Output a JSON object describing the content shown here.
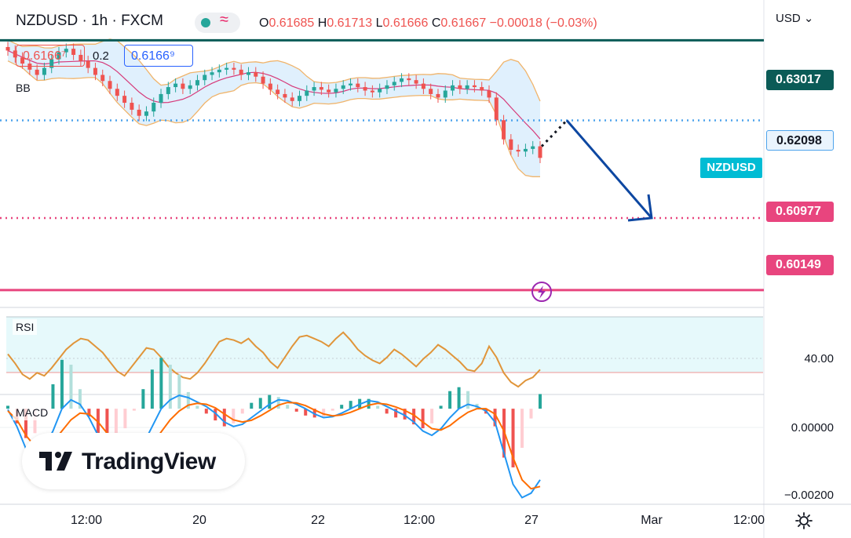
{
  "header": {
    "symbol": "NZDUSD · 1h · FXCM",
    "o_label": "O",
    "o_value": "0.61685",
    "h_label": "H",
    "h_value": "0.61713",
    "l_label": "L",
    "l_value": "0.61666",
    "c_label": "C",
    "c_value": "0.61667",
    "change": "−0.00018 (−0.03%)"
  },
  "trade": {
    "sell": "0.6166⁷",
    "spread": "0.2",
    "buy": "0.6166⁹"
  },
  "currency": "USD ⌄",
  "indicators": {
    "bb": "BB",
    "rsi": "RSI",
    "macd": "MACD"
  },
  "symbol_tag": "NZDUSD",
  "logo": "TradingView",
  "colors": {
    "up": "#26a69a",
    "down": "#ef5350",
    "teal_line": "#0b5b57",
    "pink_line": "#e8457e",
    "blue_dotted": "#4da3ec",
    "arrow": "#0d47a1"
  },
  "chart_data": [
    {
      "type": "line",
      "subtype": "candlestick with bollinger bands",
      "ylim": [
        0.5995,
        0.6348
      ],
      "price_levels": [
        {
          "label": "0.63017",
          "value": 0.63017,
          "style": "solid",
          "color": "#0b5b57"
        },
        {
          "label": "0.62098",
          "value": 0.62098,
          "style": "dotted",
          "color": "#4da3ec"
        },
        {
          "label": "0.60977",
          "value": 0.60977,
          "style": "dotted",
          "color": "#e8457e"
        },
        {
          "label": "0.60149",
          "value": 0.60149,
          "style": "solid",
          "color": "#e8457e"
        }
      ],
      "close_series": [
        0.629,
        0.6282,
        0.6275,
        0.6268,
        0.6262,
        0.627,
        0.628,
        0.6288,
        0.6292,
        0.6285,
        0.6278,
        0.627,
        0.6262,
        0.6255,
        0.6246,
        0.6238,
        0.623,
        0.6222,
        0.6215,
        0.622,
        0.623,
        0.624,
        0.6248,
        0.6252,
        0.6246,
        0.625,
        0.6256,
        0.6262,
        0.6265,
        0.6268,
        0.627,
        0.6268,
        0.6262,
        0.6265,
        0.626,
        0.6252,
        0.6245,
        0.624,
        0.6236,
        0.6232,
        0.6238,
        0.6244,
        0.6248,
        0.6245,
        0.6242,
        0.6246,
        0.625,
        0.6252,
        0.6248,
        0.6244,
        0.6242,
        0.6246,
        0.625,
        0.6254,
        0.6258,
        0.6256,
        0.6252,
        0.6246,
        0.624,
        0.6236,
        0.6244,
        0.625,
        0.6246,
        0.625,
        0.6248,
        0.6244,
        0.6236,
        0.621,
        0.6188,
        0.6176,
        0.6174,
        0.6177,
        0.618,
        0.61667
      ],
      "projection": [
        {
          "x": "27",
          "y": 0.618
        },
        {
          "x": "27",
          "y": 0.62098
        },
        {
          "x": "Mar",
          "y": 0.60977
        }
      ],
      "x_ticks": [
        "12:00",
        "20",
        "22",
        "12:00",
        "27",
        "Mar",
        "12:00"
      ],
      "y_axis_labels": [
        "0.63017",
        "0.62098",
        "0.60977",
        "0.60149"
      ]
    },
    {
      "type": "line",
      "name": "RSI",
      "ylim": [
        20,
        70
      ],
      "band": [
        30,
        70
      ],
      "y_ticks": [
        "40.00"
      ],
      "values": [
        46,
        40,
        33,
        30,
        34,
        32,
        37,
        43,
        49,
        53,
        56,
        55,
        51,
        47,
        41,
        35,
        32,
        38,
        44,
        50,
        49,
        44,
        38,
        34,
        31,
        30,
        34,
        40,
        47,
        54,
        56,
        55,
        53,
        56,
        51,
        47,
        41,
        37,
        44,
        51,
        57,
        58,
        56,
        54,
        51,
        56,
        60,
        55,
        49,
        45,
        42,
        40,
        44,
        49,
        46,
        42,
        38,
        43,
        47,
        52,
        49,
        45,
        41,
        36,
        35,
        40,
        51,
        44,
        34,
        28,
        25,
        29,
        31,
        36
      ]
    },
    {
      "type": "bar",
      "name": "MACD",
      "ylim": [
        -0.00215,
        0.00032
      ],
      "y_ticks": [
        "0.00000",
        "−0.00200"
      ],
      "macd": [
        -2e-05,
        -0.0004,
        -0.0009,
        -0.0011,
        -0.0009,
        -0.0005,
        0.0,
        0.0002,
        0.0001,
        -0.0002,
        -0.0006,
        -0.0009,
        -0.0011,
        -0.0012,
        -0.0011,
        -0.0008,
        -0.0004,
        0.0,
        0.0002,
        0.0003,
        0.00025,
        0.00015,
        5e-05,
        -0.0001,
        -0.0003,
        -0.0004,
        -0.00035,
        -0.0002,
        -5e-05,
        0.0001,
        0.0002,
        0.00018,
        0.0001,
        0.0,
        -0.00012,
        -0.0002,
        -0.00018,
        -0.0001,
        0.0,
        0.0001,
        0.00018,
        0.00015,
        5e-05,
        -5e-05,
        -0.00015,
        -0.0003,
        -0.0005,
        -0.0006,
        -0.00045,
        -0.0002,
        0.0,
        0.0001,
        5e-05,
        -5e-05,
        -0.0003,
        -0.001,
        -0.0017,
        -0.002,
        -0.0019,
        -0.0016
      ],
      "signal": [
        -5e-05,
        -0.00025,
        -0.0006,
        -0.00085,
        -0.00088,
        -0.00075,
        -0.0005,
        -0.00025,
        -0.0001,
        -0.00012,
        -0.0003,
        -0.00055,
        -0.0008,
        -0.001,
        -0.00108,
        -0.001,
        -0.0008,
        -0.00052,
        -0.00025,
        -5e-05,
        8e-05,
        0.00012,
        0.0001,
        2e-05,
        -0.00012,
        -0.00025,
        -0.0003,
        -0.00026,
        -0.00016,
        -4e-05,
        8e-05,
        0.00014,
        0.00013,
        7e-05,
        -3e-05,
        -0.00012,
        -0.00016,
        -0.00014,
        -8e-05,
        0.0,
        8e-05,
        0.00012,
        0.0001,
        4e-05,
        -4e-05,
        -0.00014,
        -0.0003,
        -0.00045,
        -0.00048,
        -0.00038,
        -0.00022,
        -8e-05,
        0.0,
        0.0,
        -0.00012,
        -0.0005,
        -0.0011,
        -0.0016,
        -0.0018,
        -0.00175
      ]
    }
  ]
}
